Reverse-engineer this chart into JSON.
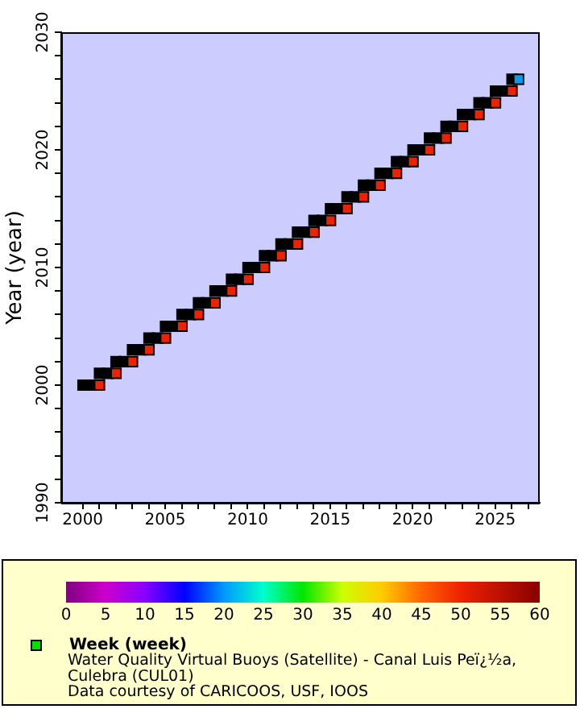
{
  "chart_data": {
    "type": "scatter",
    "ylabel": "Year (year)",
    "clabel": "Week (week)",
    "annotations": [
      "Water Quality Virtual Buoys (Satellite) - Canal Luis Peï¿½a, Culebra (CUL01)",
      "Data courtesy of CARICOOS, USF, IOOS"
    ],
    "marker": "square",
    "legend": false,
    "grid": false,
    "xlim": [
      1998.7,
      2027.7
    ],
    "ylim": [
      1990,
      2030
    ],
    "xticks": [
      2000,
      {
        "value": 2001,
        "label": null
      },
      {
        "value": 2002,
        "label": null
      },
      {
        "value": 2003,
        "label": null
      },
      {
        "value": 2004,
        "label": null
      },
      2005,
      {
        "value": 2006,
        "label": null
      },
      {
        "value": 2007,
        "label": null
      },
      {
        "value": 2008,
        "label": null
      },
      {
        "value": 2009,
        "label": null
      },
      2010,
      {
        "value": 2011,
        "label": null
      },
      {
        "value": 2012,
        "label": null
      },
      {
        "value": 2013,
        "label": null
      },
      {
        "value": 2014,
        "label": null
      },
      2015,
      {
        "value": 2016,
        "label": null
      },
      {
        "value": 2017,
        "label": null
      },
      {
        "value": 2018,
        "label": null
      },
      {
        "value": 2019,
        "label": null
      },
      2020,
      {
        "value": 2021,
        "label": null
      },
      {
        "value": 2022,
        "label": null
      },
      {
        "value": 2023,
        "label": null
      },
      {
        "value": 2024,
        "label": null
      },
      2025,
      {
        "value": 2026,
        "label": null
      },
      {
        "value": 2027,
        "label": null
      }
    ],
    "yticks": [
      1990,
      {
        "value": 1992,
        "label": null
      },
      {
        "value": 1994,
        "label": null
      },
      {
        "value": 1996,
        "label": null
      },
      {
        "value": 1998,
        "label": null
      },
      2000,
      {
        "value": 2002,
        "label": null
      },
      {
        "value": 2004,
        "label": null
      },
      {
        "value": 2006,
        "label": null
      },
      {
        "value": 2008,
        "label": null
      },
      2010,
      {
        "value": 2012,
        "label": null
      },
      {
        "value": 2014,
        "label": null
      },
      {
        "value": 2016,
        "label": null
      },
      {
        "value": 2018,
        "label": null
      },
      2020,
      {
        "value": 2022,
        "label": null
      },
      {
        "value": 2024,
        "label": null
      },
      {
        "value": 2026,
        "label": null
      },
      {
        "value": 2028,
        "label": null
      },
      2030
    ],
    "clim": [
      0,
      60
    ],
    "cticks": [
      0,
      5,
      10,
      15,
      20,
      25,
      30,
      35,
      40,
      45,
      50,
      55,
      60
    ],
    "series": [
      {
        "x": [
          2000.02,
          2000.52,
          2001.02
        ],
        "values": [
          2000,
          2000,
          2000
        ],
        "colors": [
          "#000000",
          "#000000",
          "#ee2200"
        ]
      },
      {
        "x": [
          2001.02,
          2001.52,
          2002.02
        ],
        "values": [
          2001,
          2001,
          2001
        ],
        "colors": [
          "#000000",
          "#000000",
          "#ee2200"
        ]
      },
      {
        "x": [
          2002.02,
          2002.52,
          2003.02
        ],
        "values": [
          2002,
          2002,
          2002
        ],
        "colors": [
          "#000000",
          "#000000",
          "#ee2200"
        ]
      },
      {
        "x": [
          2003.02,
          2003.52,
          2004.02
        ],
        "values": [
          2003,
          2003,
          2003
        ],
        "colors": [
          "#000000",
          "#000000",
          "#ee2200"
        ]
      },
      {
        "x": [
          2004.02,
          2004.52,
          2005.02
        ],
        "values": [
          2004,
          2004,
          2004
        ],
        "colors": [
          "#000000",
          "#000000",
          "#ee2200"
        ]
      },
      {
        "x": [
          2005.02,
          2005.52,
          2006.02
        ],
        "values": [
          2005,
          2005,
          2005
        ],
        "colors": [
          "#000000",
          "#000000",
          "#ee2200"
        ]
      },
      {
        "x": [
          2006.02,
          2006.52,
          2007.02
        ],
        "values": [
          2006,
          2006,
          2006
        ],
        "colors": [
          "#000000",
          "#000000",
          "#ee2200"
        ]
      },
      {
        "x": [
          2007.02,
          2007.52,
          2008.02
        ],
        "values": [
          2007,
          2007,
          2007
        ],
        "colors": [
          "#000000",
          "#000000",
          "#ee2200"
        ]
      },
      {
        "x": [
          2008.02,
          2008.52,
          2009.02
        ],
        "values": [
          2008,
          2008,
          2008
        ],
        "colors": [
          "#000000",
          "#000000",
          "#ee2200"
        ]
      },
      {
        "x": [
          2009.02,
          2009.52,
          2010.02
        ],
        "values": [
          2009,
          2009,
          2009
        ],
        "colors": [
          "#000000",
          "#000000",
          "#ee2200"
        ]
      },
      {
        "x": [
          2010.02,
          2010.52,
          2011.02
        ],
        "values": [
          2010,
          2010,
          2010
        ],
        "colors": [
          "#000000",
          "#000000",
          "#ee2200"
        ]
      },
      {
        "x": [
          2011.02,
          2011.52,
          2012.02
        ],
        "values": [
          2011,
          2011,
          2011
        ],
        "colors": [
          "#000000",
          "#000000",
          "#ee2200"
        ]
      },
      {
        "x": [
          2012.02,
          2012.52,
          2013.02
        ],
        "values": [
          2012,
          2012,
          2012
        ],
        "colors": [
          "#000000",
          "#000000",
          "#ee2200"
        ]
      },
      {
        "x": [
          2013.02,
          2013.52,
          2014.02
        ],
        "values": [
          2013,
          2013,
          2013
        ],
        "colors": [
          "#000000",
          "#000000",
          "#ee2200"
        ]
      },
      {
        "x": [
          2014.02,
          2014.52,
          2015.02
        ],
        "values": [
          2014,
          2014,
          2014
        ],
        "colors": [
          "#000000",
          "#000000",
          "#ee2200"
        ]
      },
      {
        "x": [
          2015.02,
          2015.52,
          2016.02
        ],
        "values": [
          2015,
          2015,
          2015
        ],
        "colors": [
          "#000000",
          "#000000",
          "#ee2200"
        ]
      },
      {
        "x": [
          2016.02,
          2016.52,
          2017.02
        ],
        "values": [
          2016,
          2016,
          2016
        ],
        "colors": [
          "#000000",
          "#000000",
          "#ee2200"
        ]
      },
      {
        "x": [
          2017.02,
          2017.52,
          2018.02
        ],
        "values": [
          2017,
          2017,
          2017
        ],
        "colors": [
          "#000000",
          "#000000",
          "#ee2200"
        ]
      },
      {
        "x": [
          2018.02,
          2018.52,
          2019.02
        ],
        "values": [
          2018,
          2018,
          2018
        ],
        "colors": [
          "#000000",
          "#000000",
          "#ee2200"
        ]
      },
      {
        "x": [
          2019.02,
          2019.52,
          2020.02
        ],
        "values": [
          2019,
          2019,
          2019
        ],
        "colors": [
          "#000000",
          "#000000",
          "#ee2200"
        ]
      },
      {
        "x": [
          2020.02,
          2020.52,
          2021.02
        ],
        "values": [
          2020,
          2020,
          2020
        ],
        "colors": [
          "#000000",
          "#000000",
          "#ee2200"
        ]
      },
      {
        "x": [
          2021.02,
          2021.52,
          2022.02
        ],
        "values": [
          2021,
          2021,
          2021
        ],
        "colors": [
          "#000000",
          "#000000",
          "#ee2200"
        ]
      },
      {
        "x": [
          2022.02,
          2022.52,
          2023.02
        ],
        "values": [
          2022,
          2022,
          2022
        ],
        "colors": [
          "#000000",
          "#000000",
          "#ee2200"
        ]
      },
      {
        "x": [
          2023.02,
          2023.52,
          2024.02
        ],
        "values": [
          2023,
          2023,
          2023
        ],
        "colors": [
          "#000000",
          "#000000",
          "#ee2200"
        ]
      },
      {
        "x": [
          2024.02,
          2024.52,
          2025.02
        ],
        "values": [
          2024,
          2024,
          2024
        ],
        "colors": [
          "#000000",
          "#000000",
          "#ee2200"
        ]
      },
      {
        "x": [
          2025.02,
          2025.52,
          2026.02
        ],
        "values": [
          2025,
          2025,
          2025
        ],
        "colors": [
          "#000000",
          "#000000",
          "#ee2200"
        ]
      },
      {
        "x": [
          2026.02,
          2026.42
        ],
        "values": [
          2026,
          2026
        ],
        "colors": [
          "#000000",
          "#1199ee"
        ]
      }
    ]
  }
}
